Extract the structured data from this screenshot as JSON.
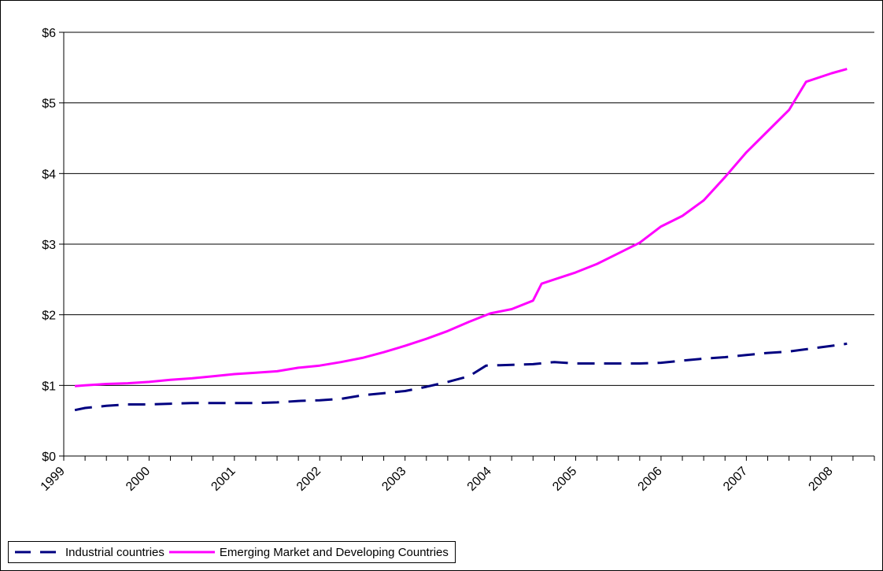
{
  "chart_data": {
    "type": "line",
    "title": "",
    "xlabel": "",
    "ylabel": "",
    "ylim": [
      0,
      6
    ],
    "yticks": [
      "$0",
      "$1",
      "$2",
      "$3",
      "$4",
      "$5",
      "$6"
    ],
    "xlim": [
      1999.0,
      2008.5
    ],
    "xticks": [
      "1999",
      "2000",
      "2001",
      "2002",
      "2003",
      "2004",
      "2005",
      "2006",
      "2007",
      "2008"
    ],
    "grid": "horizontal",
    "legend_position": "bottom-left",
    "series": [
      {
        "name": "Industrial countries",
        "color": "#000080",
        "style": "dashed",
        "points": [
          [
            1999.13,
            0.65
          ],
          [
            1999.25,
            0.68
          ],
          [
            1999.5,
            0.71
          ],
          [
            1999.75,
            0.73
          ],
          [
            2000.0,
            0.73
          ],
          [
            2000.25,
            0.74
          ],
          [
            2000.5,
            0.75
          ],
          [
            2000.75,
            0.75
          ],
          [
            2001.0,
            0.75
          ],
          [
            2001.25,
            0.75
          ],
          [
            2001.5,
            0.76
          ],
          [
            2001.75,
            0.78
          ],
          [
            2002.0,
            0.79
          ],
          [
            2002.25,
            0.81
          ],
          [
            2002.5,
            0.86
          ],
          [
            2002.75,
            0.89
          ],
          [
            2003.0,
            0.92
          ],
          [
            2003.25,
            0.98
          ],
          [
            2003.5,
            1.05
          ],
          [
            2003.75,
            1.13
          ],
          [
            2003.95,
            1.28
          ],
          [
            2004.25,
            1.29
          ],
          [
            2004.5,
            1.3
          ],
          [
            2004.75,
            1.33
          ],
          [
            2005.0,
            1.31
          ],
          [
            2005.25,
            1.31
          ],
          [
            2005.5,
            1.31
          ],
          [
            2005.75,
            1.31
          ],
          [
            2006.0,
            1.32
          ],
          [
            2006.25,
            1.35
          ],
          [
            2006.5,
            1.38
          ],
          [
            2006.75,
            1.4
          ],
          [
            2007.0,
            1.43
          ],
          [
            2007.25,
            1.46
          ],
          [
            2007.5,
            1.48
          ],
          [
            2007.75,
            1.52
          ],
          [
            2008.0,
            1.56
          ],
          [
            2008.18,
            1.59
          ]
        ]
      },
      {
        "name": "Emerging Market and Developing Countries",
        "color": "#ff00ff",
        "style": "solid",
        "points": [
          [
            1999.13,
            0.99
          ],
          [
            1999.25,
            1.0
          ],
          [
            1999.5,
            1.02
          ],
          [
            1999.75,
            1.03
          ],
          [
            2000.0,
            1.05
          ],
          [
            2000.25,
            1.08
          ],
          [
            2000.5,
            1.1
          ],
          [
            2000.75,
            1.13
          ],
          [
            2001.0,
            1.16
          ],
          [
            2001.25,
            1.18
          ],
          [
            2001.5,
            1.2
          ],
          [
            2001.75,
            1.25
          ],
          [
            2002.0,
            1.28
          ],
          [
            2002.25,
            1.33
          ],
          [
            2002.5,
            1.39
          ],
          [
            2002.75,
            1.47
          ],
          [
            2003.0,
            1.56
          ],
          [
            2003.25,
            1.66
          ],
          [
            2003.5,
            1.77
          ],
          [
            2003.75,
            1.9
          ],
          [
            2004.0,
            2.02
          ],
          [
            2004.25,
            2.08
          ],
          [
            2004.5,
            2.2
          ],
          [
            2004.6,
            2.44
          ],
          [
            2004.75,
            2.5
          ],
          [
            2005.0,
            2.6
          ],
          [
            2005.25,
            2.72
          ],
          [
            2005.5,
            2.87
          ],
          [
            2005.75,
            3.02
          ],
          [
            2006.0,
            3.25
          ],
          [
            2006.25,
            3.4
          ],
          [
            2006.5,
            3.62
          ],
          [
            2006.75,
            3.95
          ],
          [
            2007.0,
            4.3
          ],
          [
            2007.25,
            4.6
          ],
          [
            2007.5,
            4.9
          ],
          [
            2007.7,
            5.3
          ],
          [
            2008.0,
            5.42
          ],
          [
            2008.18,
            5.48
          ]
        ]
      }
    ]
  }
}
